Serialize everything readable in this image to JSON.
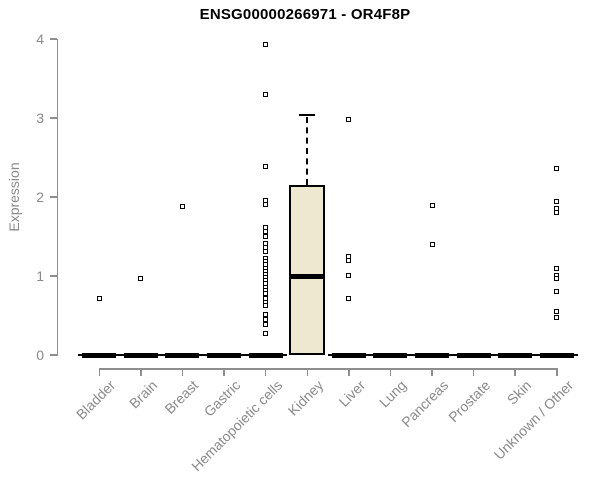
{
  "chart_data": {
    "type": "boxplot",
    "title": "ENSG00000266971 - OR4F8P",
    "ylabel": "Expression",
    "xlabel": "",
    "ylim": [
      0,
      4
    ],
    "yticks": [
      "0",
      "1",
      "2",
      "3",
      "4"
    ],
    "grid": false,
    "legend_position": "none",
    "categories": [
      "Bladder",
      "Brain",
      "Breast",
      "Gastric",
      "Hematopoietic cells",
      "Kidney",
      "Liver",
      "Lung",
      "Pancreas",
      "Prostate",
      "Skin",
      "Unknown / Other"
    ],
    "boxes": [
      {
        "category": "Bladder",
        "q1": 0,
        "median": 0,
        "q3": 0,
        "whisker_low": 0,
        "whisker_high": 0,
        "outliers": [
          0.72
        ]
      },
      {
        "category": "Brain",
        "q1": 0,
        "median": 0,
        "q3": 0,
        "whisker_low": 0,
        "whisker_high": 0,
        "outliers": [
          0.97
        ]
      },
      {
        "category": "Breast",
        "q1": 0,
        "median": 0,
        "q3": 0,
        "whisker_low": 0,
        "whisker_high": 0,
        "outliers": [
          1.88
        ]
      },
      {
        "category": "Gastric",
        "q1": 0,
        "median": 0,
        "q3": 0,
        "whisker_low": 0,
        "whisker_high": 0,
        "outliers": []
      },
      {
        "category": "Hematopoietic cells",
        "q1": 0,
        "median": 0,
        "q3": 0,
        "whisker_low": 0,
        "whisker_high": 0,
        "outliers": [
          3.93,
          3.3,
          2.38,
          1.96,
          1.9,
          1.62,
          1.56,
          1.5,
          1.41,
          1.36,
          1.31,
          1.22,
          1.18,
          1.14,
          1.1,
          1.06,
          1.02,
          0.98,
          0.94,
          0.9,
          0.86,
          0.82,
          0.78,
          0.72,
          0.67,
          0.63,
          0.51,
          0.45,
          0.38,
          0.27
        ]
      },
      {
        "category": "Kidney",
        "q1": 0,
        "median": 0.99,
        "q3": 2.15,
        "whisker_low": 0,
        "whisker_high": 3.04,
        "outliers": []
      },
      {
        "category": "Liver",
        "q1": 0,
        "median": 0,
        "q3": 0,
        "whisker_low": 0,
        "whisker_high": 0,
        "outliers": [
          2.98,
          1.25,
          1.19,
          1.01,
          0.72
        ]
      },
      {
        "category": "Lung",
        "q1": 0,
        "median": 0,
        "q3": 0,
        "whisker_low": 0,
        "whisker_high": 0,
        "outliers": []
      },
      {
        "category": "Pancreas",
        "q1": 0,
        "median": 0,
        "q3": 0,
        "whisker_low": 0,
        "whisker_high": 0,
        "outliers": [
          1.89,
          1.4
        ]
      },
      {
        "category": "Prostate",
        "q1": 0,
        "median": 0,
        "q3": 0,
        "whisker_low": 0,
        "whisker_high": 0,
        "outliers": []
      },
      {
        "category": "Skin",
        "q1": 0,
        "median": 0,
        "q3": 0,
        "whisker_low": 0,
        "whisker_high": 0,
        "outliers": []
      },
      {
        "category": "Unknown / Other",
        "q1": 0,
        "median": 0,
        "q3": 0,
        "whisker_low": 0,
        "whisker_high": 0,
        "outliers": [
          2.36,
          1.94,
          1.86,
          1.81,
          1.09,
          1.01,
          0.97,
          0.8,
          0.55,
          0.48
        ]
      }
    ],
    "colors": {
      "background": "#ffffff",
      "box_fill": "#EEE8D0",
      "box_border": "#000000",
      "median": "#000000",
      "outlier": "#000000",
      "axis": "#8e8e8e",
      "text": "#8a8a8a",
      "title": "#000000"
    }
  }
}
